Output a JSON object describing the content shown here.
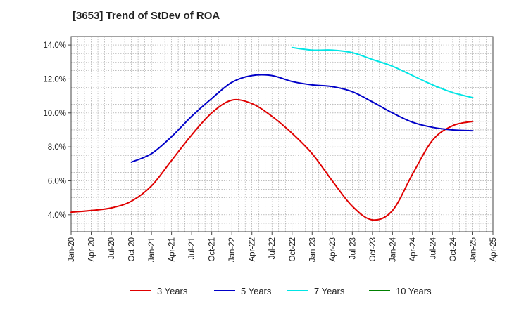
{
  "title": "[3653]  Trend of StDev of ROA",
  "chart_data": {
    "type": "line",
    "title": "[3653]  Trend of StDev of ROA",
    "xlabel": "",
    "ylabel": "",
    "ylim": [
      3.0,
      14.5
    ],
    "y_ticks": [
      4.0,
      6.0,
      8.0,
      10.0,
      12.0,
      14.0
    ],
    "y_tick_labels": [
      "4.0%",
      "6.0%",
      "8.0%",
      "10.0%",
      "12.0%",
      "14.0%"
    ],
    "x_tick_labels": [
      "Jan-20",
      "Apr-20",
      "Jul-20",
      "Oct-20",
      "Jan-21",
      "Apr-21",
      "Jul-21",
      "Oct-21",
      "Jan-22",
      "Apr-22",
      "Jul-22",
      "Oct-22",
      "Jan-23",
      "Apr-23",
      "Jul-23",
      "Oct-23",
      "Jan-24",
      "Apr-24",
      "Jul-24",
      "Oct-24",
      "Jan-25",
      "Apr-25"
    ],
    "grid": true,
    "legend_position": "bottom",
    "series": [
      {
        "name": "3 Years",
        "color": "#e00000",
        "x": [
          "Jan-20",
          "Apr-20",
          "Jul-20",
          "Oct-20",
          "Jan-21",
          "Apr-21",
          "Jul-21",
          "Oct-21",
          "Jan-22",
          "Apr-22",
          "Jul-22",
          "Oct-22",
          "Jan-23",
          "Apr-23",
          "Jul-23",
          "Oct-23",
          "Jan-24",
          "Apr-24",
          "Jul-24",
          "Oct-24",
          "Jan-25"
        ],
        "values": [
          4.15,
          4.25,
          4.4,
          4.8,
          5.7,
          7.2,
          8.7,
          10.0,
          10.75,
          10.55,
          9.8,
          8.8,
          7.6,
          6.0,
          4.5,
          3.7,
          4.25,
          6.4,
          8.4,
          9.25,
          9.5
        ]
      },
      {
        "name": "5 Years",
        "color": "#0000c8",
        "x": [
          "Oct-20",
          "Jan-21",
          "Apr-21",
          "Jul-21",
          "Oct-21",
          "Jan-22",
          "Apr-22",
          "Jul-22",
          "Oct-22",
          "Jan-23",
          "Apr-23",
          "Jul-23",
          "Oct-23",
          "Jan-24",
          "Apr-24",
          "Jul-24",
          "Oct-24",
          "Jan-25"
        ],
        "values": [
          7.1,
          7.6,
          8.6,
          9.8,
          10.85,
          11.8,
          12.2,
          12.2,
          11.85,
          11.65,
          11.55,
          11.25,
          10.65,
          10.0,
          9.45,
          9.15,
          9.0,
          8.95
        ]
      },
      {
        "name": "7 Years",
        "color": "#00e5e5",
        "x": [
          "Oct-22",
          "Jan-23",
          "Apr-23",
          "Jul-23",
          "Oct-23",
          "Jan-24",
          "Apr-24",
          "Jul-24",
          "Oct-24",
          "Jan-25"
        ],
        "values": [
          13.85,
          13.7,
          13.7,
          13.55,
          13.15,
          12.75,
          12.2,
          11.65,
          11.2,
          10.9
        ]
      },
      {
        "name": "10 Years",
        "color": "#008000",
        "x": [],
        "values": []
      }
    ]
  }
}
